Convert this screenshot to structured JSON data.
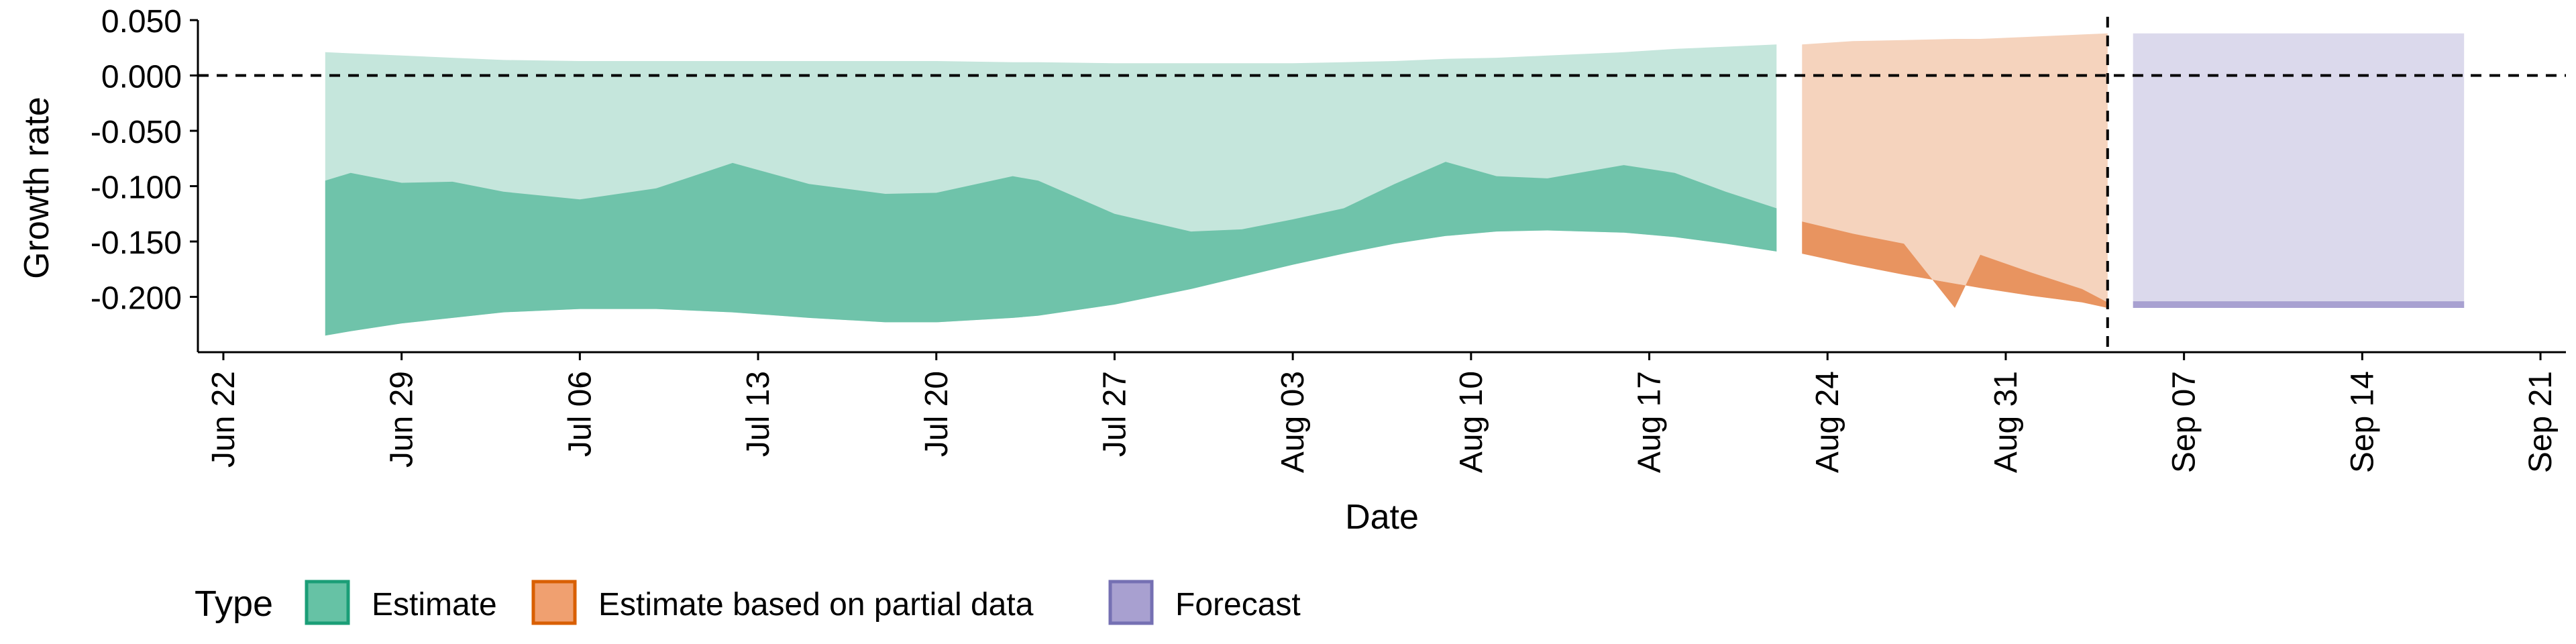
{
  "chart_data": {
    "type": "area",
    "title": "",
    "xlabel": "Date",
    "ylabel": "Growth rate",
    "x_axis": {
      "type": "date",
      "range": [
        "2020-06-21",
        "2020-09-22"
      ],
      "ticks": [
        {
          "date": "2020-06-22",
          "label": "Jun 22"
        },
        {
          "date": "2020-06-29",
          "label": "Jun 29"
        },
        {
          "date": "2020-07-06",
          "label": "Jul 06"
        },
        {
          "date": "2020-07-13",
          "label": "Jul 13"
        },
        {
          "date": "2020-07-20",
          "label": "Jul 20"
        },
        {
          "date": "2020-07-27",
          "label": "Jul 27"
        },
        {
          "date": "2020-08-03",
          "label": "Aug 03"
        },
        {
          "date": "2020-08-10",
          "label": "Aug 10"
        },
        {
          "date": "2020-08-17",
          "label": "Aug 17"
        },
        {
          "date": "2020-08-24",
          "label": "Aug 24"
        },
        {
          "date": "2020-08-31",
          "label": "Aug 31"
        },
        {
          "date": "2020-09-07",
          "label": "Sep 07"
        },
        {
          "date": "2020-09-14",
          "label": "Sep 14"
        },
        {
          "date": "2020-09-21",
          "label": "Sep 21"
        }
      ]
    },
    "y_axis": {
      "range": [
        -0.25,
        0.05
      ],
      "ticks": [
        {
          "value": 0.05,
          "label": "0.050"
        },
        {
          "value": 0.0,
          "label": "0.000"
        },
        {
          "value": -0.05,
          "label": "-0.050"
        },
        {
          "value": -0.1,
          "label": "-0.100"
        },
        {
          "value": -0.15,
          "label": "-0.150"
        },
        {
          "value": -0.2,
          "label": "-0.200"
        }
      ]
    },
    "reference_lines": [
      {
        "axis": "y",
        "value": 0.0,
        "style": "dashed"
      },
      {
        "axis": "x",
        "date": "2020-09-04",
        "style": "dashed"
      }
    ],
    "grid": false,
    "legend": {
      "position": "bottom",
      "title": "Type",
      "entries": [
        {
          "label": "Estimate",
          "color": "#66c2a5",
          "border": "#1b9e77"
        },
        {
          "label": "Estimate based on partial data",
          "color": "#f0a070",
          "border": "#d95f02"
        },
        {
          "label": "Forecast",
          "color": "#a8a0d0",
          "border": "#7570b3"
        }
      ]
    },
    "series": [
      {
        "name": "Estimate",
        "outer_fill": "#c5e6dc",
        "inner_fill": "#6fc3aa",
        "bands": [
          {
            "date": "2020-06-26",
            "outer_upper": 0.021,
            "outer_lower": -0.235,
            "inner_upper": -0.095,
            "inner_lower": -0.235
          },
          {
            "date": "2020-06-27",
            "outer_upper": 0.02,
            "outer_lower": -0.231,
            "inner_upper": -0.088,
            "inner_lower": -0.231
          },
          {
            "date": "2020-06-29",
            "outer_upper": 0.018,
            "outer_lower": -0.224,
            "inner_upper": -0.097,
            "inner_lower": -0.224
          },
          {
            "date": "2020-07-01",
            "outer_upper": 0.016,
            "outer_lower": -0.219,
            "inner_upper": -0.096,
            "inner_lower": -0.219
          },
          {
            "date": "2020-07-03",
            "outer_upper": 0.014,
            "outer_lower": -0.214,
            "inner_upper": -0.105,
            "inner_lower": -0.214
          },
          {
            "date": "2020-07-06",
            "outer_upper": 0.013,
            "outer_lower": -0.211,
            "inner_upper": -0.112,
            "inner_lower": -0.211
          },
          {
            "date": "2020-07-09",
            "outer_upper": 0.013,
            "outer_lower": -0.211,
            "inner_upper": -0.102,
            "inner_lower": -0.211
          },
          {
            "date": "2020-07-12",
            "outer_upper": 0.013,
            "outer_lower": -0.214,
            "inner_upper": -0.079,
            "inner_lower": -0.214
          },
          {
            "date": "2020-07-15",
            "outer_upper": 0.013,
            "outer_lower": -0.219,
            "inner_upper": -0.098,
            "inner_lower": -0.219
          },
          {
            "date": "2020-07-18",
            "outer_upper": 0.013,
            "outer_lower": -0.223,
            "inner_upper": -0.107,
            "inner_lower": -0.223
          },
          {
            "date": "2020-07-20",
            "outer_upper": 0.013,
            "outer_lower": -0.223,
            "inner_upper": -0.106,
            "inner_lower": -0.223
          },
          {
            "date": "2020-07-23",
            "outer_upper": 0.012,
            "outer_lower": -0.219,
            "inner_upper": -0.091,
            "inner_lower": -0.219
          },
          {
            "date": "2020-07-24",
            "outer_upper": 0.012,
            "outer_lower": -0.217,
            "inner_upper": -0.095,
            "inner_lower": -0.217
          },
          {
            "date": "2020-07-27",
            "outer_upper": 0.011,
            "outer_lower": -0.207,
            "inner_upper": -0.125,
            "inner_lower": -0.207
          },
          {
            "date": "2020-07-30",
            "outer_upper": 0.011,
            "outer_lower": -0.193,
            "inner_upper": -0.141,
            "inner_lower": -0.193
          },
          {
            "date": "2020-08-01",
            "outer_upper": 0.011,
            "outer_lower": -0.182,
            "inner_upper": -0.139,
            "inner_lower": -0.182
          },
          {
            "date": "2020-08-03",
            "outer_upper": 0.011,
            "outer_lower": -0.171,
            "inner_upper": -0.13,
            "inner_lower": -0.171
          },
          {
            "date": "2020-08-05",
            "outer_upper": 0.012,
            "outer_lower": -0.161,
            "inner_upper": -0.12,
            "inner_lower": -0.161
          },
          {
            "date": "2020-08-07",
            "outer_upper": 0.013,
            "outer_lower": -0.152,
            "inner_upper": -0.098,
            "inner_lower": -0.152
          },
          {
            "date": "2020-08-09",
            "outer_upper": 0.015,
            "outer_lower": -0.145,
            "inner_upper": -0.078,
            "inner_lower": -0.145
          },
          {
            "date": "2020-08-11",
            "outer_upper": 0.016,
            "outer_lower": -0.141,
            "inner_upper": -0.091,
            "inner_lower": -0.141
          },
          {
            "date": "2020-08-13",
            "outer_upper": 0.018,
            "outer_lower": -0.14,
            "inner_upper": -0.093,
            "inner_lower": -0.14
          },
          {
            "date": "2020-08-16",
            "outer_upper": 0.021,
            "outer_lower": -0.142,
            "inner_upper": -0.081,
            "inner_lower": -0.142
          },
          {
            "date": "2020-08-18",
            "outer_upper": 0.024,
            "outer_lower": -0.146,
            "inner_upper": -0.088,
            "inner_lower": -0.146
          },
          {
            "date": "2020-08-20",
            "outer_upper": 0.026,
            "outer_lower": -0.152,
            "inner_upper": -0.105,
            "inner_lower": -0.152
          },
          {
            "date": "2020-08-22",
            "outer_upper": 0.028,
            "outer_lower": -0.159,
            "inner_upper": -0.12,
            "inner_lower": -0.159
          }
        ]
      },
      {
        "name": "Estimate based on partial data",
        "outer_fill": "#f5d3bd",
        "inner_fill": "#e89460",
        "bands": [
          {
            "date": "2020-08-23",
            "outer_upper": 0.028,
            "outer_lower": -0.161,
            "inner_upper": -0.132,
            "inner_lower": -0.161
          },
          {
            "date": "2020-08-25",
            "outer_upper": 0.031,
            "outer_lower": -0.171,
            "inner_upper": -0.143,
            "inner_lower": -0.171
          },
          {
            "date": "2020-08-27",
            "outer_upper": 0.032,
            "outer_lower": -0.18,
            "inner_upper": -0.152,
            "inner_lower": -0.18
          },
          {
            "date": "2020-08-29",
            "outer_upper": 0.033,
            "outer_lower": -0.188,
            "inner_upper": -0.21,
            "inner_lower": -0.188
          },
          {
            "date": "2020-08-30",
            "outer_upper": 0.033,
            "outer_lower": -0.192,
            "inner_upper": -0.162,
            "inner_lower": -0.192
          },
          {
            "date": "2020-09-01",
            "outer_upper": 0.035,
            "outer_lower": -0.199,
            "inner_upper": -0.178,
            "inner_lower": -0.199
          },
          {
            "date": "2020-09-03",
            "outer_upper": 0.037,
            "outer_lower": -0.205,
            "inner_upper": -0.193,
            "inner_lower": -0.205
          },
          {
            "date": "2020-09-04",
            "outer_upper": 0.038,
            "outer_lower": -0.21,
            "inner_upper": -0.205,
            "inner_lower": -0.21
          }
        ]
      },
      {
        "name": "Forecast",
        "outer_fill": "#dbd9ec",
        "inner_fill": "#a8a1d1",
        "bands": [
          {
            "date": "2020-09-05",
            "outer_upper": 0.038,
            "outer_lower": -0.21,
            "inner_upper": -0.204,
            "inner_lower": -0.21
          },
          {
            "date": "2020-09-18",
            "outer_upper": 0.038,
            "outer_lower": -0.21,
            "inner_upper": -0.204,
            "inner_lower": -0.21
          }
        ]
      }
    ]
  }
}
